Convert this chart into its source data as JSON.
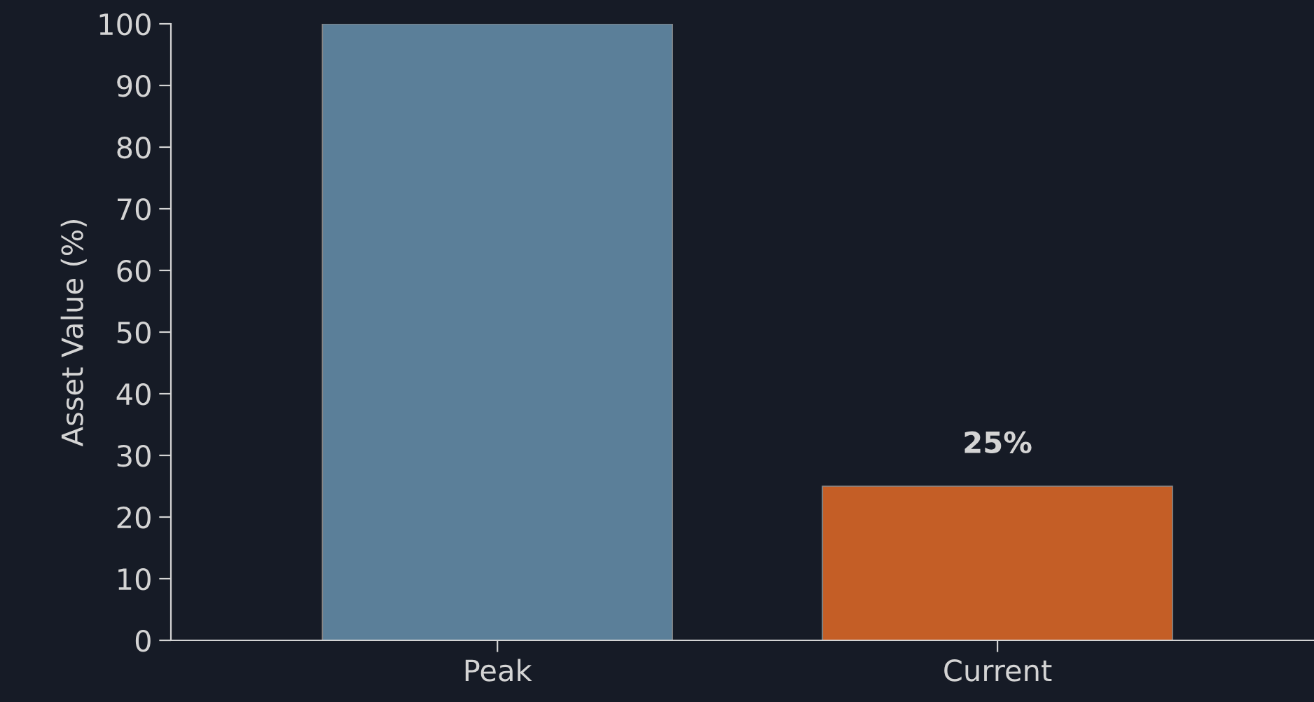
{
  "chart_data": {
    "type": "bar",
    "ylabel": "Asset Value (%)",
    "categories": [
      "Peak",
      "Current"
    ],
    "values": [
      100,
      25
    ],
    "colors": [
      "#5b7f99",
      "#c45e26"
    ],
    "value_labels": [
      null,
      "25%"
    ],
    "ylim": [
      0,
      100
    ],
    "yticks": [
      0,
      10,
      20,
      30,
      40,
      50,
      60,
      70,
      80,
      90,
      100
    ],
    "grid": false,
    "legend": false
  }
}
